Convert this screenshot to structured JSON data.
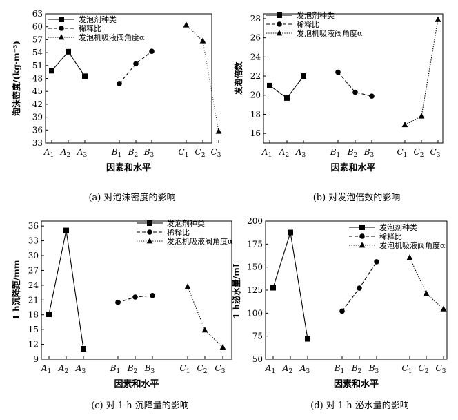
{
  "chart_data": [
    {
      "type": "line",
      "caption": "(a) 对泡沫密度的影响",
      "xlabel": "因素和水平",
      "ylabel": "泡沫密度/(kg·m⁻³)",
      "ylim": [
        33,
        63
      ],
      "yticks": [
        33,
        36,
        39,
        42,
        45,
        48,
        51,
        54,
        57,
        60,
        63
      ],
      "grid": false,
      "legend_position": "top-left",
      "categories": [
        "A1",
        "A2",
        "A3",
        "B1",
        "B2",
        "B3",
        "C1",
        "C2",
        "C3"
      ],
      "series": [
        {
          "name": "发泡剂种类",
          "style": "solid",
          "marker": "square",
          "x": [
            "A1",
            "A2",
            "A3"
          ],
          "values": [
            49.8,
            54.2,
            48.5
          ]
        },
        {
          "name": "稀释比",
          "style": "dashed",
          "marker": "circle",
          "x": [
            "B1",
            "B2",
            "B3"
          ],
          "values": [
            46.8,
            51.4,
            54.3
          ]
        },
        {
          "name": "发泡机吸液阀角度α",
          "style": "dotted",
          "marker": "triangle",
          "x": [
            "C1",
            "C2",
            "C3"
          ],
          "values": [
            60.4,
            56.7,
            35.7
          ]
        }
      ]
    },
    {
      "type": "line",
      "caption": "(b) 对发泡倍数的影响",
      "xlabel": "因素和水平",
      "ylabel": "发泡倍数",
      "ylim": [
        15,
        28.5
      ],
      "yticks": [
        16,
        18,
        20,
        22,
        24,
        26,
        28
      ],
      "grid": false,
      "legend_position": "top-left",
      "categories": [
        "A1",
        "A2",
        "A3",
        "B1",
        "B2",
        "B3",
        "C1",
        "C2",
        "C3"
      ],
      "series": [
        {
          "name": "发泡剂种类",
          "style": "solid",
          "marker": "square",
          "x": [
            "A1",
            "A2",
            "A3"
          ],
          "values": [
            21.0,
            19.7,
            22.0
          ]
        },
        {
          "name": "稀释比",
          "style": "dashed",
          "marker": "circle",
          "x": [
            "B1",
            "B2",
            "B3"
          ],
          "values": [
            22.4,
            20.3,
            19.9
          ]
        },
        {
          "name": "发泡机吸液阀角度α",
          "style": "dotted",
          "marker": "triangle",
          "x": [
            "C1",
            "C2",
            "C3"
          ],
          "values": [
            16.9,
            17.8,
            27.9
          ]
        }
      ]
    },
    {
      "type": "line",
      "caption": "(c) 对 1 h 沉降量的影响",
      "xlabel": "因素和水平",
      "ylabel": "1 h沉降距/mm",
      "ylim": [
        9,
        37
      ],
      "yticks": [
        9,
        12,
        15,
        18,
        21,
        24,
        27,
        30,
        33,
        36
      ],
      "grid": false,
      "legend_position": "top-right",
      "categories": [
        "A1",
        "A2",
        "A3",
        "B1",
        "B2",
        "B3",
        "C1",
        "C2",
        "C3"
      ],
      "series": [
        {
          "name": "发泡剂种类",
          "style": "solid",
          "marker": "square",
          "x": [
            "A1",
            "A2",
            "A3"
          ],
          "values": [
            18.1,
            35.1,
            11.1
          ]
        },
        {
          "name": "稀释比",
          "style": "dashed",
          "marker": "circle",
          "x": [
            "B1",
            "B2",
            "B3"
          ],
          "values": [
            20.5,
            21.6,
            21.9
          ]
        },
        {
          "name": "发泡机吸液阀角度α",
          "style": "dotted",
          "marker": "triangle",
          "x": [
            "C1",
            "C2",
            "C3"
          ],
          "values": [
            23.7,
            14.9,
            11.4
          ]
        }
      ]
    },
    {
      "type": "line",
      "caption": "(d) 对 1 h 泌水量的影响",
      "xlabel": "因素和水平",
      "ylabel": "1 h泌水量/mL",
      "ylim": [
        50,
        200
      ],
      "yticks": [
        50,
        75,
        100,
        125,
        150,
        175,
        200
      ],
      "grid": false,
      "legend_position": "top-right",
      "categories": [
        "A1",
        "A2",
        "A3",
        "B1",
        "B2",
        "B3",
        "C1",
        "C2",
        "C3"
      ],
      "series": [
        {
          "name": "发泡剂种类",
          "style": "solid",
          "marker": "square",
          "x": [
            "A1",
            "A2",
            "A3"
          ],
          "values": [
            127.6,
            187.6,
            72.1
          ]
        },
        {
          "name": "稀释比",
          "style": "dashed",
          "marker": "circle",
          "x": [
            "B1",
            "B2",
            "B3"
          ],
          "values": [
            102.2,
            127.2,
            155.8
          ]
        },
        {
          "name": "发泡机吸液阀角度α",
          "style": "dotted",
          "marker": "triangle",
          "x": [
            "C1",
            "C2",
            "C3"
          ],
          "values": [
            160.4,
            121.4,
            104.5
          ]
        }
      ]
    }
  ]
}
